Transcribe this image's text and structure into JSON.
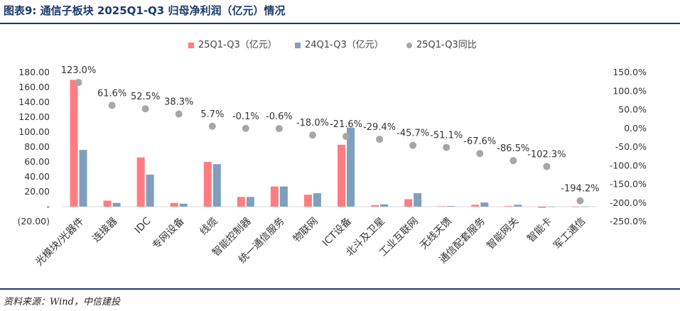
{
  "header": {
    "title": "图表9:   通信子板块 2025Q1-Q3 归母净利润（亿元）情况"
  },
  "footer": {
    "source": "资料来源：Wind，中信建投"
  },
  "colors": {
    "title": "#1a3a6b",
    "series_25": "#ff7c80",
    "series_24": "#7f9fbd",
    "yoy_dot": "#a6a6a6"
  },
  "chart_data": {
    "type": "bar",
    "categories": [
      "光模块/光器件",
      "连接器",
      "IDC",
      "专网设备",
      "线缆",
      "智能控制器",
      "统一通信服务",
      "物联网",
      "ICT设备",
      "北斗及卫星",
      "工业互联网",
      "无线天馈",
      "通信配套服务",
      "智能网关",
      "智能卡",
      "军工通信"
    ],
    "series": [
      {
        "name": "25Q1-Q3（亿元）",
        "type": "bar",
        "axis": "left",
        "values": [
          170,
          8,
          66,
          5,
          60,
          13,
          27,
          16,
          83,
          2,
          10,
          0.5,
          2.5,
          0.8,
          -1.5,
          -0.6
        ]
      },
      {
        "name": "24Q1-Q3（亿元）",
        "type": "bar",
        "axis": "left",
        "values": [
          76,
          5,
          43,
          4,
          57,
          13,
          27,
          18,
          106,
          3,
          18,
          0.8,
          5.5,
          2.5,
          -0.4,
          0.2
        ]
      },
      {
        "name": "25Q1-Q3同比",
        "type": "scatter",
        "axis": "right",
        "values": [
          123.0,
          61.6,
          52.5,
          38.3,
          5.7,
          -0.1,
          -0.6,
          -18.0,
          -21.6,
          -29.4,
          -45.7,
          -51.1,
          -67.6,
          -86.5,
          -102.3,
          -194.2
        ],
        "labels": [
          "123.0%",
          "61.6%",
          "52.5%",
          "38.3%",
          "5.7%",
          "-0.1%",
          "-0.6%",
          "-18.0%",
          "-21.6%",
          "-29.4%",
          "-45.7%",
          "-51.1%",
          "-67.6%",
          "-86.5%",
          "-102.3%",
          "-194.2%"
        ]
      }
    ],
    "left_axis": {
      "ylim": [
        -20,
        180
      ],
      "ticks": [
        180,
        160,
        140,
        120,
        100,
        80,
        60,
        40,
        20,
        0,
        -20
      ],
      "tick_labels": [
        "180.00",
        "160.00",
        "140.00",
        "120.00",
        "100.00",
        "80.00",
        "60.00",
        "40.00",
        "20.00",
        "-",
        "(20.00)"
      ]
    },
    "right_axis": {
      "ylim": [
        -250,
        150
      ],
      "ticks": [
        150,
        100,
        50,
        0,
        -50,
        -100,
        -150,
        -200,
        -250
      ],
      "tick_labels": [
        "150.0%",
        "100.0%",
        "50.0%",
        "0.0%",
        "-50.0%",
        "-100.0%",
        "-150.0%",
        "-200.0%",
        "-250.0%"
      ]
    },
    "legend_position": "top-center",
    "grid": false
  }
}
